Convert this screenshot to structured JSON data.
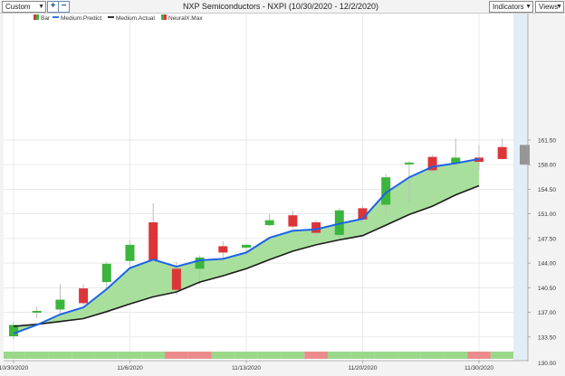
{
  "toolbar": {
    "period_select": "Custom",
    "zoom_in": "+",
    "zoom_out": "−",
    "title": "NXP Semiconductors - NXPI (10/30/2020 - 12/2/2020)",
    "indicators_label": "Indicators",
    "views_label": "Views"
  },
  "colors": {
    "up": "#3cb53c",
    "down": "#dc3538",
    "predict": "#1e63e6",
    "actual": "#1b1b1b",
    "band": "#a8df9c",
    "forecast_area": "#e3edf6",
    "forecast_bar": "#969696"
  },
  "chart_data": {
    "type": "candlestick",
    "ylim": [
      130.0,
      163.0
    ],
    "yticks": [
      "133.50",
      "137.00",
      "140.50",
      "144.00",
      "147.50",
      "151.00",
      "154.50",
      "158.00",
      "161.50"
    ],
    "ytick_values": [
      133.5,
      137.0,
      140.5,
      144.0,
      147.5,
      151.0,
      154.5,
      158.0,
      161.5
    ],
    "xtick_labels": [
      {
        "index": 0,
        "label": "10/30/2020"
      },
      {
        "index": 5,
        "label": "11/6/2020"
      },
      {
        "index": 10,
        "label": "11/13/2020"
      },
      {
        "index": 15,
        "label": "11/20/2020"
      },
      {
        "index": 20,
        "label": "11/30/2020"
      }
    ],
    "legend": [
      "Bar",
      "Medium.Predict",
      "Medium.Actual",
      "NeuralX.Max"
    ],
    "bars": [
      {
        "open": 133.6,
        "high": 135.6,
        "low": 133.2,
        "close": 135.2
      },
      {
        "open": 137.0,
        "high": 137.8,
        "low": 136.2,
        "close": 137.2
      },
      {
        "open": 137.4,
        "high": 141.0,
        "low": 136.5,
        "close": 138.8
      },
      {
        "open": 140.4,
        "high": 141.0,
        "low": 138.0,
        "close": 138.3
      },
      {
        "open": 141.3,
        "high": 144.2,
        "low": 140.4,
        "close": 143.9
      },
      {
        "open": 144.3,
        "high": 147.2,
        "low": 143.6,
        "close": 146.6
      },
      {
        "open": 149.8,
        "high": 152.5,
        "low": 144.3,
        "close": 144.4
      },
      {
        "open": 143.2,
        "high": 144.2,
        "low": 139.5,
        "close": 140.2
      },
      {
        "open": 143.2,
        "high": 145.1,
        "low": 141.0,
        "close": 144.8
      },
      {
        "open": 146.4,
        "high": 147.1,
        "low": 144.2,
        "close": 145.5
      },
      {
        "open": 146.2,
        "high": 146.7,
        "low": 145.1,
        "close": 146.6
      },
      {
        "open": 149.4,
        "high": 151.0,
        "low": 149.2,
        "close": 150.1
      },
      {
        "open": 150.8,
        "high": 151.5,
        "low": 148.9,
        "close": 149.2
      },
      {
        "open": 149.8,
        "high": 150.1,
        "low": 147.8,
        "close": 148.3
      },
      {
        "open": 148.0,
        "high": 151.8,
        "low": 147.6,
        "close": 151.5
      },
      {
        "open": 151.8,
        "high": 152.1,
        "low": 149.9,
        "close": 150.2
      },
      {
        "open": 152.3,
        "high": 156.7,
        "low": 150.8,
        "close": 156.2
      },
      {
        "open": 158.3,
        "high": 158.5,
        "low": 152.7,
        "close": 158.3
      },
      {
        "open": 159.1,
        "high": 159.4,
        "low": 156.8,
        "close": 157.2
      },
      {
        "open": 158.2,
        "high": 161.7,
        "low": 158.2,
        "close": 159.0
      },
      {
        "open": 159.0,
        "high": 160.8,
        "low": 157.2,
        "close": 158.4
      },
      {
        "open": 160.5,
        "high": 161.7,
        "low": 158.7,
        "close": 158.8
      }
    ],
    "medium_predict": [
      134.0,
      135.2,
      136.7,
      137.7,
      140.3,
      143.3,
      144.5,
      143.5,
      144.4,
      144.6,
      145.5,
      147.6,
      148.6,
      148.8,
      149.6,
      150.3,
      154.0,
      156.2,
      157.7,
      158.2,
      158.8
    ],
    "medium_actual": [
      135.0,
      135.3,
      135.7,
      136.1,
      137.1,
      138.2,
      139.2,
      139.9,
      141.3,
      142.2,
      143.2,
      144.5,
      145.7,
      146.6,
      147.3,
      147.9,
      149.4,
      150.9,
      152.1,
      153.7,
      155.0
    ],
    "forecast_bar": {
      "high": 160.8,
      "low": 158.0
    },
    "signal_strip": [
      "up",
      "up",
      "up",
      "up",
      "up",
      "up",
      "up",
      "down",
      "down",
      "up",
      "up",
      "up",
      "up",
      "down",
      "up",
      "up",
      "up",
      "up",
      "up",
      "up",
      "down",
      "up"
    ]
  }
}
